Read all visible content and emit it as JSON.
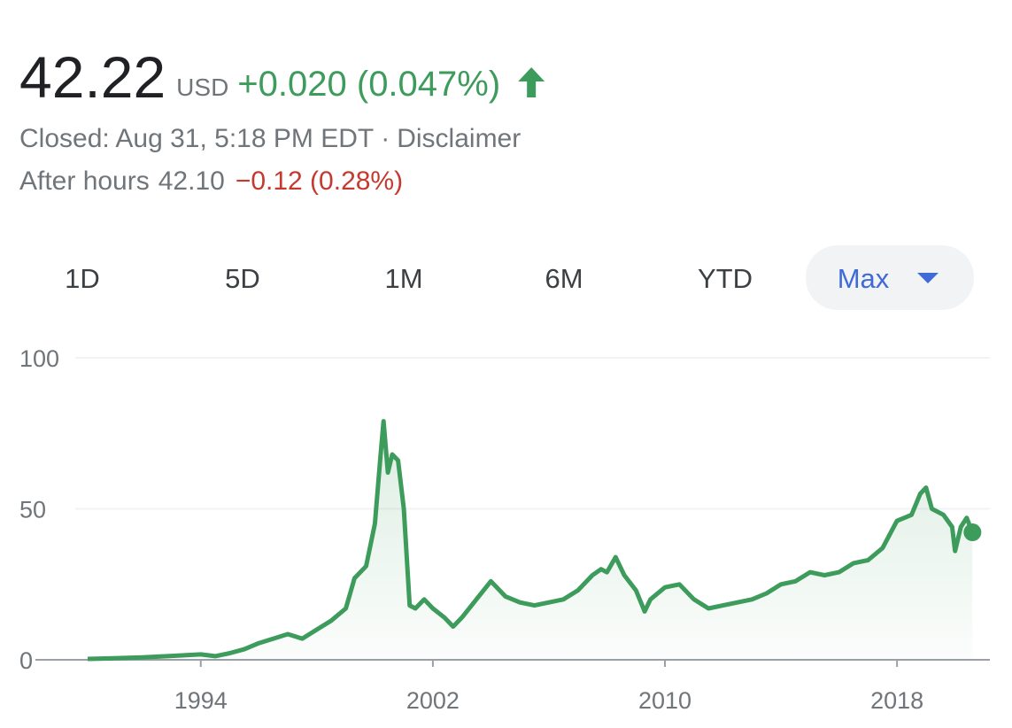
{
  "header": {
    "price": "42.22",
    "currency": "USD",
    "change": "+0.020 (0.047%)",
    "status": "Closed: Aug 31, 5:18 PM EDT",
    "separator": "·",
    "disclaimer": "Disclaimer",
    "after_hours_label": "After hours",
    "after_hours_price": "42.10",
    "after_hours_change": "−0.12 (0.28%)"
  },
  "tabs": {
    "items": [
      "1D",
      "5D",
      "1M",
      "6M",
      "YTD",
      "Max"
    ],
    "selected_index": 5
  },
  "chart_data": {
    "type": "line",
    "color": "#3d9b5c",
    "x": [
      1990.1,
      1991,
      1992,
      1993,
      1994,
      1994.5,
      1995,
      1995.5,
      1996,
      1996.5,
      1997,
      1997.5,
      1998,
      1998.5,
      1999,
      1999.3,
      1999.7,
      2000,
      2000.2,
      2000.3,
      2000.45,
      2000.6,
      2000.8,
      2001,
      2001.2,
      2001.4,
      2001.7,
      2002,
      2002.4,
      2002.7,
      2003,
      2003.5,
      2004,
      2004.5,
      2005,
      2005.5,
      2006,
      2006.5,
      2007,
      2007.5,
      2007.8,
      2008,
      2008.3,
      2008.6,
      2009,
      2009.3,
      2009.5,
      2010,
      2010.5,
      2011,
      2011.5,
      2012,
      2012.5,
      2013,
      2013.5,
      2014,
      2014.5,
      2015,
      2015.5,
      2016,
      2016.5,
      2017,
      2017.5,
      2018,
      2018.5,
      2018.8,
      2019,
      2019.2,
      2019.6,
      2019.9,
      2020,
      2020.2,
      2020.4,
      2020.6
    ],
    "values": [
      0.3,
      0.5,
      0.8,
      1.3,
      1.8,
      1.2,
      2.2,
      3.5,
      5.5,
      7,
      8.5,
      7,
      10,
      13,
      17,
      27,
      31,
      45,
      68,
      79,
      62,
      68,
      66,
      50,
      18,
      17,
      20,
      17,
      14,
      11,
      14,
      20,
      26,
      21,
      19,
      18,
      19,
      20,
      23,
      28,
      30,
      29,
      34,
      28,
      23,
      16,
      20,
      24,
      25,
      20,
      17,
      18,
      19,
      20,
      22,
      25,
      26,
      29,
      28,
      29,
      32,
      33,
      37,
      46,
      48,
      55,
      57,
      50,
      48,
      44,
      36,
      44,
      47,
      42.22
    ],
    "xlim": [
      1988.3,
      2021.2
    ],
    "xticks": [
      1994,
      2002,
      2010,
      2018
    ],
    "ylim": [
      0,
      100
    ],
    "yticks": [
      0,
      50,
      100
    ],
    "grid": true
  }
}
